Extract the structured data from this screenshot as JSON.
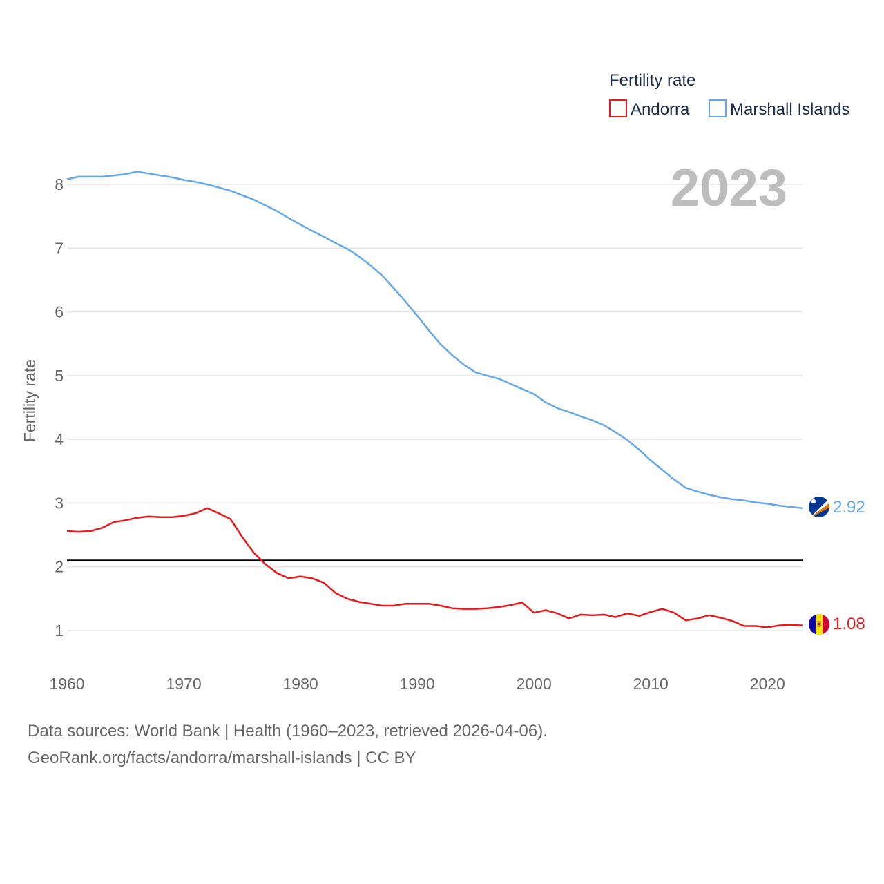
{
  "chart_data": {
    "type": "line",
    "year_label": "2023",
    "ylabel": "Fertility rate",
    "xlim": [
      1960,
      2023
    ],
    "ylim": [
      0.5,
      8.5
    ],
    "yticks": [
      1,
      2,
      3,
      4,
      5,
      6,
      7,
      8
    ],
    "xticks": [
      1960,
      1970,
      1980,
      1990,
      2000,
      2010,
      2020
    ],
    "legend": {
      "title": "Fertility rate",
      "placement": "top-right"
    },
    "reference_line": {
      "y": 2.1,
      "color": "#000000"
    },
    "x": [
      1960,
      1961,
      1962,
      1963,
      1964,
      1965,
      1966,
      1967,
      1968,
      1969,
      1970,
      1971,
      1972,
      1973,
      1974,
      1975,
      1976,
      1977,
      1978,
      1979,
      1980,
      1981,
      1982,
      1983,
      1984,
      1985,
      1986,
      1987,
      1988,
      1989,
      1990,
      1991,
      1992,
      1993,
      1994,
      1995,
      1996,
      1997,
      1998,
      1999,
      2000,
      2001,
      2002,
      2003,
      2004,
      2005,
      2006,
      2007,
      2008,
      2009,
      2010,
      2011,
      2012,
      2013,
      2014,
      2015,
      2016,
      2017,
      2018,
      2019,
      2020,
      2021,
      2022,
      2023
    ],
    "series": [
      {
        "name": "Andorra",
        "color": "#e8191d",
        "end_label": "1.08",
        "flag": "andorra-flag",
        "values": [
          2.56,
          2.55,
          2.56,
          2.61,
          2.7,
          2.73,
          2.77,
          2.79,
          2.78,
          2.78,
          2.8,
          2.84,
          2.92,
          2.84,
          2.75,
          2.47,
          2.22,
          2.04,
          1.9,
          1.82,
          1.85,
          1.82,
          1.75,
          1.59,
          1.5,
          1.45,
          1.42,
          1.39,
          1.39,
          1.42,
          1.42,
          1.42,
          1.39,
          1.35,
          1.34,
          1.34,
          1.35,
          1.37,
          1.4,
          1.44,
          1.28,
          1.32,
          1.27,
          1.19,
          1.25,
          1.24,
          1.25,
          1.21,
          1.27,
          1.23,
          1.29,
          1.34,
          1.28,
          1.16,
          1.19,
          1.24,
          1.2,
          1.15,
          1.07,
          1.07,
          1.05,
          1.08,
          1.09,
          1.08
        ]
      },
      {
        "name": "Marshall Islands",
        "color": "#63a8e9",
        "end_label": "2.92",
        "flag": "marshall-islands-flag",
        "values": [
          8.08,
          8.12,
          8.12,
          8.12,
          8.14,
          8.16,
          8.2,
          8.17,
          8.14,
          8.11,
          8.07,
          8.04,
          8.0,
          7.95,
          7.9,
          7.83,
          7.76,
          7.67,
          7.58,
          7.47,
          7.37,
          7.27,
          7.18,
          7.08,
          6.99,
          6.87,
          6.73,
          6.57,
          6.37,
          6.16,
          5.94,
          5.71,
          5.49,
          5.32,
          5.17,
          5.05,
          5.0,
          4.95,
          4.87,
          4.79,
          4.71,
          4.58,
          4.49,
          4.43,
          4.36,
          4.3,
          4.22,
          4.11,
          3.99,
          3.84,
          3.67,
          3.52,
          3.37,
          3.24,
          3.18,
          3.13,
          3.09,
          3.06,
          3.04,
          3.01,
          2.99,
          2.96,
          2.94,
          2.92
        ]
      }
    ]
  },
  "footer": {
    "sources": "Data sources: World Bank | Health (1960–2023, retrieved 2026-04-06).",
    "credit": "GeoRank.org/facts/andorra/marshall-islands | CC BY"
  }
}
